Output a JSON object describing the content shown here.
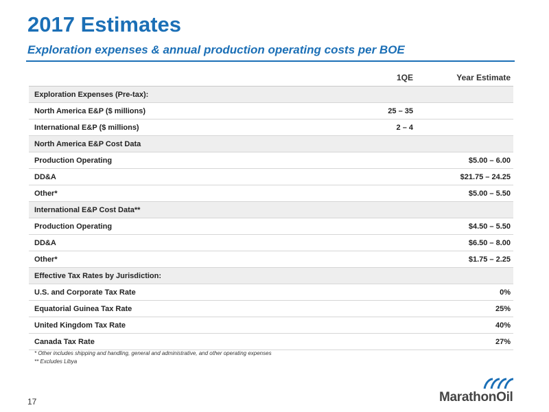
{
  "title": "2017 Estimates",
  "subtitle": "Exploration expenses & annual production operating costs per BOE",
  "table": {
    "columns": [
      "1QE",
      "Year Estimate"
    ],
    "rows": [
      {
        "label": "Exploration Expenses (Pre-tax):",
        "q": "",
        "y": "",
        "section": true
      },
      {
        "label": "North America E&P ($ millions)",
        "q": "25 – 35",
        "y": "",
        "section": false
      },
      {
        "label": "International  E&P ($ millions)",
        "q": "2 – 4",
        "y": "",
        "section": false
      },
      {
        "label": "North America E&P Cost Data",
        "q": "",
        "y": "",
        "section": true
      },
      {
        "label": "Production Operating",
        "q": "",
        "y": "$5.00 – 6.00",
        "section": false
      },
      {
        "label": "DD&A",
        "q": "",
        "y": "$21.75 – 24.25",
        "section": false
      },
      {
        "label": "Other*",
        "q": "",
        "y": "$5.00 – 5.50",
        "section": false
      },
      {
        "label": "International E&P Cost Data**",
        "q": "",
        "y": "",
        "section": true
      },
      {
        "label": "Production Operating",
        "q": "",
        "y": "$4.50 – 5.50",
        "section": false
      },
      {
        "label": "DD&A",
        "q": "",
        "y": "$6.50 – 8.00",
        "section": false
      },
      {
        "label": "Other*",
        "q": "",
        "y": "$1.75 – 2.25",
        "section": false
      },
      {
        "label": "Effective Tax Rates by Jurisdiction:",
        "q": "",
        "y": "",
        "section": true
      },
      {
        "label": "U.S. and Corporate Tax Rate",
        "q": "",
        "y": "0%",
        "section": false
      },
      {
        "label": "Equatorial Guinea Tax Rate",
        "q": "",
        "y": "25%",
        "section": false
      },
      {
        "label": "United Kingdom Tax Rate",
        "q": "",
        "y": "40%",
        "section": false
      },
      {
        "label": "Canada Tax Rate",
        "q": "",
        "y": "27%",
        "section": false
      }
    ]
  },
  "footnotes": [
    "* Other includes shipping and handling, general and administrative, and other operating expenses",
    "** Excludes Libya"
  ],
  "page_number": "17",
  "logo": {
    "text": "MarathonOil",
    "icon": "marathon-oil-wave-logo",
    "color": "#1b6fb6"
  }
}
